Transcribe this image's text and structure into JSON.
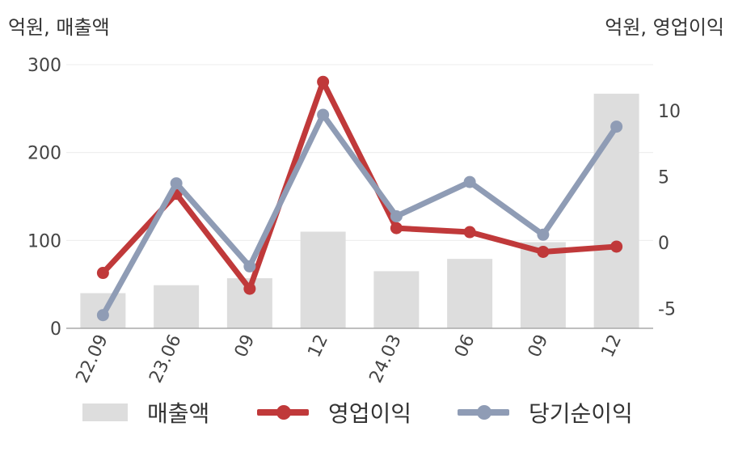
{
  "units": {
    "left": "억원, 매출액",
    "right": "억원, 영업이익"
  },
  "chart_data": {
    "type": "bar+line",
    "categories": [
      "22.09",
      "23.06",
      "09",
      "12",
      "24.03",
      "06",
      "09",
      "12"
    ],
    "y_left": {
      "ylim": [
        0,
        300
      ],
      "ticks": [
        0,
        100,
        200,
        300
      ]
    },
    "y_right": {
      "ylim": [
        -6.5,
        13.5
      ],
      "ticks": [
        -5,
        0,
        5,
        10
      ]
    },
    "grid": true,
    "legend_position": "bottom",
    "series": [
      {
        "name": "매출액",
        "kind": "bar",
        "axis": "left",
        "color": "#dddddd",
        "values": [
          40,
          49,
          57,
          110,
          65,
          79,
          98,
          267
        ]
      },
      {
        "name": "영업이익",
        "kind": "line",
        "axis": "right",
        "color": "#c0393a",
        "values": [
          -2.3,
          3.7,
          -3.5,
          12.2,
          1.1,
          0.8,
          -0.7,
          -0.3
        ]
      },
      {
        "name": "당기순이익",
        "kind": "line",
        "axis": "right",
        "color": "#8f9cb5",
        "values": [
          -5.5,
          4.5,
          -1.8,
          9.7,
          2.0,
          4.6,
          0.6,
          8.8
        ]
      }
    ]
  }
}
